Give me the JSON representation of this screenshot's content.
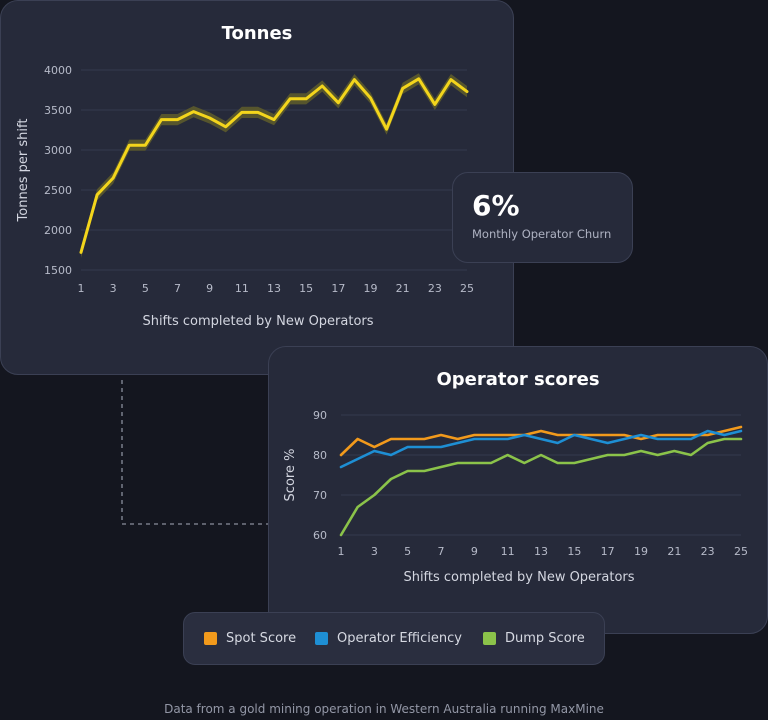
{
  "churn": {
    "value": "6%",
    "label": "Monthly Operator Churn"
  },
  "legend": [
    {
      "label": "Spot Score",
      "color": "#f29a1c"
    },
    {
      "label": "Operator Efficiency",
      "color": "#1e8fd4"
    },
    {
      "label": "Dump Score",
      "color": "#8bc34a"
    }
  ],
  "footnote": "Data from a gold mining operation in Western Australia running MaxMine",
  "chart_data": [
    {
      "type": "line",
      "title": "Tonnes",
      "xlabel": "Shifts completed by New Operators",
      "ylabel": "Tonnes per shift",
      "xlim": [
        1,
        25
      ],
      "ylim": [
        1500,
        4000
      ],
      "xticks": [
        1,
        3,
        5,
        7,
        9,
        11,
        13,
        15,
        17,
        19,
        21,
        23,
        25
      ],
      "yticks": [
        1500,
        2000,
        2500,
        3000,
        3500,
        4000
      ],
      "grid": true,
      "x": [
        1,
        2,
        3,
        4,
        5,
        6,
        7,
        8,
        9,
        10,
        11,
        12,
        13,
        14,
        15,
        16,
        17,
        18,
        19,
        20,
        21,
        22,
        23,
        24,
        25
      ],
      "series": [
        {
          "color": "#f3d51c",
          "band_color": "#5c5a2c",
          "values": [
            1720,
            2440,
            2650,
            3060,
            3060,
            3380,
            3380,
            3480,
            3400,
            3290,
            3470,
            3470,
            3380,
            3640,
            3640,
            3800,
            3590,
            3880,
            3650,
            3260,
            3770,
            3890,
            3570,
            3880,
            3730
          ],
          "band": 70
        }
      ]
    },
    {
      "type": "line",
      "title": "Operator scores",
      "xlabel": "Shifts completed by New Operators",
      "ylabel": "Score %",
      "xlim": [
        1,
        25
      ],
      "ylim": [
        60,
        90
      ],
      "xticks": [
        1,
        3,
        5,
        7,
        9,
        11,
        13,
        15,
        17,
        19,
        21,
        23,
        25
      ],
      "yticks": [
        60,
        70,
        80,
        90
      ],
      "grid": true,
      "x": [
        1,
        2,
        3,
        4,
        5,
        6,
        7,
        8,
        9,
        10,
        11,
        12,
        13,
        14,
        15,
        16,
        17,
        18,
        19,
        20,
        21,
        22,
        23,
        24,
        25
      ],
      "series": [
        {
          "name": "Spot Score",
          "color": "#f29a1c",
          "values": [
            80,
            84,
            82,
            84,
            84,
            84,
            85,
            84,
            85,
            85,
            85,
            85,
            86,
            85,
            85,
            85,
            85,
            85,
            84,
            85,
            85,
            85,
            85,
            86,
            87
          ]
        },
        {
          "name": "Operator Efficiency",
          "color": "#1e8fd4",
          "values": [
            77,
            79,
            81,
            80,
            82,
            82,
            82,
            83,
            84,
            84,
            84,
            85,
            84,
            83,
            85,
            84,
            83,
            84,
            85,
            84,
            84,
            84,
            86,
            85,
            86
          ]
        },
        {
          "name": "Dump Score",
          "color": "#8bc34a",
          "values": [
            60,
            67,
            70,
            74,
            76,
            76,
            77,
            78,
            78,
            78,
            80,
            78,
            80,
            78,
            78,
            79,
            80,
            80,
            81,
            80,
            81,
            80,
            83,
            84,
            84
          ]
        }
      ]
    }
  ]
}
